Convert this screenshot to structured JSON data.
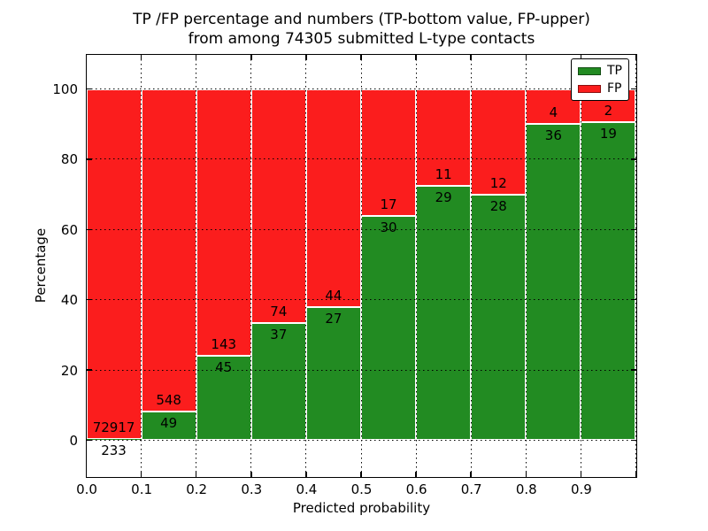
{
  "chart_data": {
    "type": "bar",
    "subtype": "stacked-100-percent",
    "title": "TP /FP percentage and numbers (TP-bottom value, FP-upper) from among 74305 submitted L-type contacts",
    "title_line1": "TP /FP percentage and numbers (TP-bottom value, FP-upper)",
    "title_line2": "from among 74305 submitted L-type contacts",
    "total_submitted": 74305,
    "xlabel": "Predicted probability",
    "ylabel": "Percentage",
    "x_tick_labels": [
      "0.0",
      "0.1",
      "0.2",
      "0.3",
      "0.4",
      "0.5",
      "0.6",
      "0.7",
      "0.8",
      "0.9"
    ],
    "y_tick_labels": [
      "0",
      "20",
      "40",
      "60",
      "80",
      "100"
    ],
    "y_tick_values": [
      0,
      20,
      40,
      60,
      80,
      100
    ],
    "xlim": [
      0.0,
      1.0
    ],
    "ylim": [
      -10.5,
      110
    ],
    "grid": true,
    "bin_width": 0.1,
    "bin_starts": [
      0.0,
      0.1,
      0.2,
      0.3,
      0.4,
      0.5,
      0.6,
      0.7,
      0.8,
      0.9
    ],
    "categories": [
      "0.0-0.1",
      "0.1-0.2",
      "0.2-0.3",
      "0.3-0.4",
      "0.4-0.5",
      "0.5-0.6",
      "0.6-0.7",
      "0.7-0.8",
      "0.8-0.9",
      "0.9-1.0"
    ],
    "series": [
      {
        "name": "TP",
        "color": "#228b22",
        "counts": [
          233,
          49,
          45,
          37,
          27,
          30,
          29,
          28,
          36,
          19
        ]
      },
      {
        "name": "FP",
        "color": "#fb1d1d",
        "counts": [
          72917,
          548,
          143,
          74,
          44,
          17,
          11,
          12,
          4,
          2
        ]
      }
    ],
    "tp_percentages": [
      0.32,
      8.21,
      23.94,
      33.33,
      38.03,
      63.83,
      72.5,
      70.0,
      90.0,
      90.48
    ],
    "legend_position": "upper right"
  }
}
